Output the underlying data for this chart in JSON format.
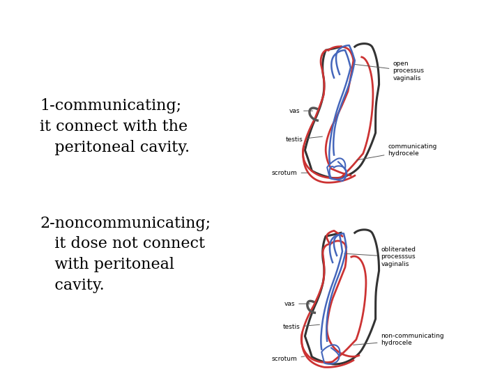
{
  "background_color": "#ffffff",
  "text1_line1": "1-communicating;",
  "text1_line2": "it connect with the",
  "text1_line3": "   peritoneal cavity.",
  "text2_line1": "2-noncommunicating;",
  "text2_line2": "   it dose not connect",
  "text2_line3": "   with peritoneal",
  "text2_line4": "   cavity.",
  "text_fontsize": 16,
  "text_color": "#000000",
  "label_fontsize": 6.5,
  "red_color": "#cc3333",
  "blue_color": "#4466bb",
  "dark_color": "#333333",
  "gray_color": "#888888"
}
